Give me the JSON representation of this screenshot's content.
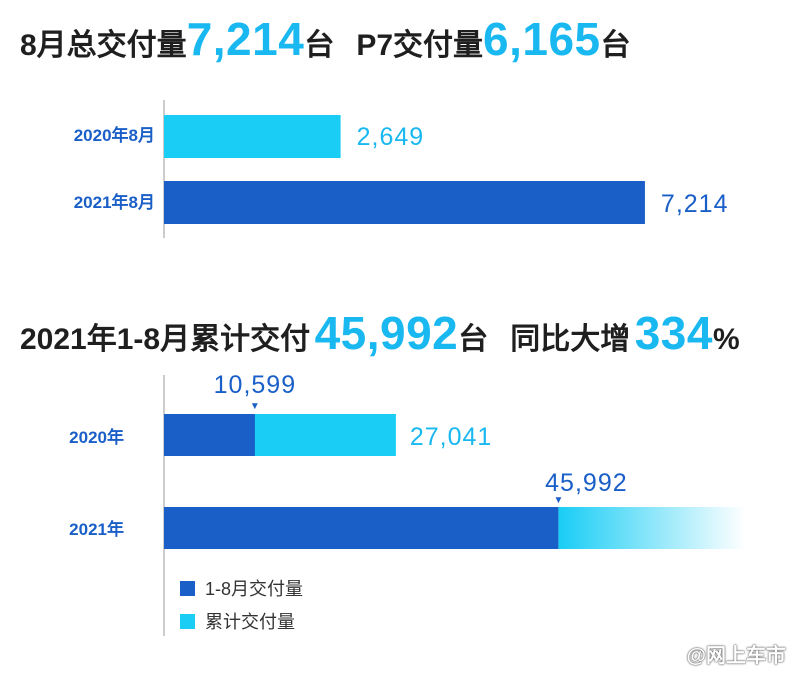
{
  "headline1": {
    "part1": "8月总交付量",
    "num1": "7,214",
    "unit1": "台",
    "part2": "P7交付量",
    "num2": "6,165",
    "unit2": "台"
  },
  "headline2": {
    "part1": "2021年1-8月累计交付",
    "num1": "45,992",
    "unit1": "台",
    "part2": "同比大增",
    "num2": "334",
    "unit2": "%"
  },
  "colors": {
    "dark_blue": "#1a5fc8",
    "light_blue": "#19cdf5",
    "text": "#1f1f1f"
  },
  "watermark": "@网上车市",
  "chart_data": [
    {
      "type": "bar",
      "orientation": "horizontal",
      "categories": [
        "2020年8月",
        "2021年8月"
      ],
      "values": [
        2649,
        7214
      ],
      "value_labels": [
        "2,649",
        "7,214"
      ],
      "bar_colors": [
        "#19cdf5",
        "#1a5fc8"
      ],
      "xlim": [
        0,
        7800
      ]
    },
    {
      "type": "bar",
      "orientation": "horizontal",
      "stacked": true,
      "categories": [
        "2020年",
        "2021年"
      ],
      "series": [
        {
          "name": "1-8月交付量",
          "values": [
            10599,
            45992
          ],
          "color": "#1a5fc8"
        },
        {
          "name": "累计交付量",
          "values": [
            27041,
            null
          ],
          "color": "#19cdf5"
        }
      ],
      "annotations": [
        {
          "category": "2020年",
          "text": "10,599",
          "marker": "▼"
        },
        {
          "category": "2020年",
          "text": "27,041"
        },
        {
          "category": "2021年",
          "text": "45,992",
          "marker": "▼"
        }
      ],
      "legend": [
        "1-8月交付量",
        "累计交付量"
      ],
      "legend_position": "bottom-left",
      "xlim": [
        0,
        73000
      ]
    }
  ]
}
